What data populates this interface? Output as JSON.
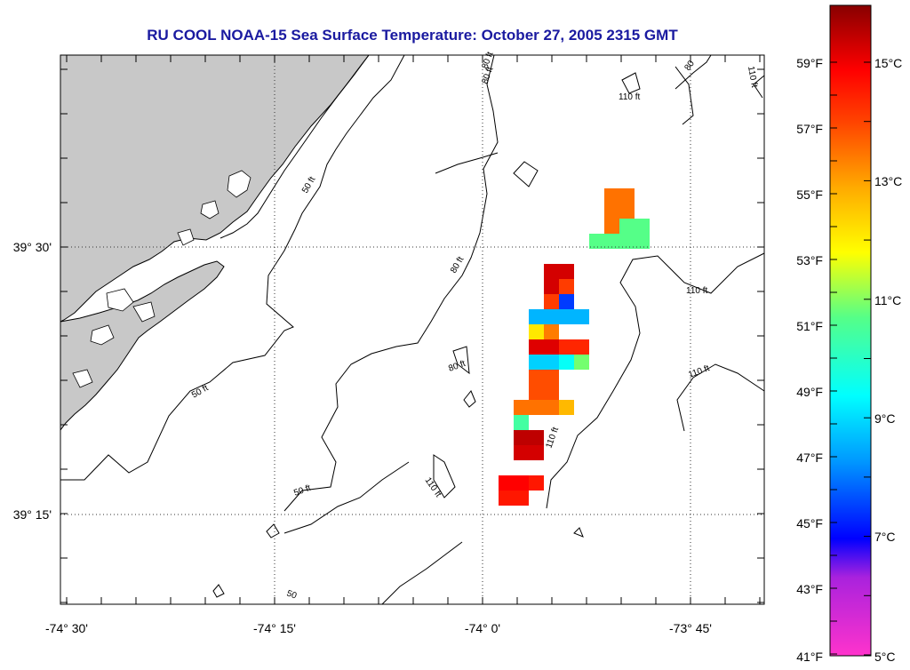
{
  "title": "RU COOL  NOAA-15  Sea Surface Temperature:  October 27, 2005 2315 GMT",
  "axes": {
    "x_ticks": [
      "-74° 30'",
      "-74° 15'",
      "-74° 0'",
      "-73° 45'"
    ],
    "y_ticks": [
      "39° 30'",
      "39° 15'"
    ]
  },
  "colorbar": {
    "fahrenheit_labels": [
      "59°F",
      "57°F",
      "55°F",
      "53°F",
      "51°F",
      "49°F",
      "47°F",
      "45°F",
      "43°F",
      "41°F"
    ],
    "celsius_labels": [
      "15°C",
      "13°C",
      "11°C",
      "9°C",
      "7°C",
      "5°C"
    ],
    "range_c": [
      5,
      16.1
    ]
  },
  "contour_labels": [
    "50 ft",
    "50 ft",
    "50 ft",
    "50",
    "80 ft",
    "80 ft",
    "80 ft",
    "80",
    "80 ft",
    "110 ft",
    "110 ft",
    "110 ft",
    "110 ft",
    "110 ft",
    "110 ft"
  ],
  "colors": {
    "land": "#c8c8c8",
    "title": "#1a1aa0",
    "coast": "#000000"
  },
  "sst_cells_c": [
    [
      13.6,
      13.6,
      13.6,
      13.6,
      13.6,
      10.8,
      10.8,
      10.8,
      10.8,
      10.8,
      10.8
    ],
    [
      15.4,
      15.4,
      15.4,
      14.2,
      14.2,
      7.5,
      8.6,
      8.6,
      8.6,
      8.6
    ],
    [
      12.2,
      13.5,
      15.3,
      15.3,
      14.5,
      14.5,
      8.9,
      8.9,
      9.5,
      11.0
    ],
    [
      14.0,
      14.0,
      14.0,
      14.0,
      13.6,
      13.6,
      13.6,
      12.8,
      10.5,
      11.0
    ],
    [
      15.6,
      15.6,
      15.4,
      15.4,
      15.0,
      15.0,
      14.7,
      14.7,
      14.7
    ]
  ]
}
